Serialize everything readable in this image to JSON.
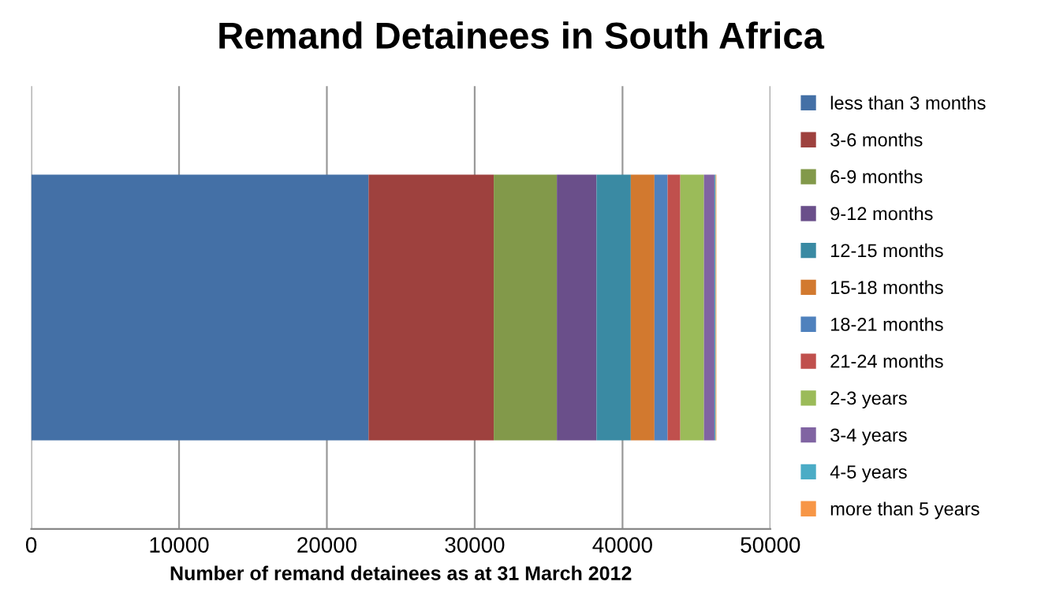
{
  "chart_data": {
    "type": "bar",
    "orientation": "horizontal",
    "stacked": true,
    "title": "Remand Detainees in South Africa",
    "xlabel": "Number of remand detainees as at 31 March 2012",
    "categories": [
      null
    ],
    "series": [
      {
        "name": "less than 3 months",
        "color": "#4470a6",
        "values": [
          22820
        ]
      },
      {
        "name": "3-6 months",
        "color": "#9e413e",
        "values": [
          8470
        ]
      },
      {
        "name": "6-9 months",
        "color": "#82994a",
        "values": [
          4270
        ]
      },
      {
        "name": "9-12 months",
        "color": "#6a4f8a",
        "values": [
          2680
        ]
      },
      {
        "name": "12-15 months",
        "color": "#3a8aa3",
        "values": [
          2320
        ]
      },
      {
        "name": "15-18 months",
        "color": "#d2792f",
        "values": [
          1600
        ]
      },
      {
        "name": "18-21 months",
        "color": "#4f81bd",
        "values": [
          890
        ]
      },
      {
        "name": "21-24 months",
        "color": "#c0504d",
        "values": [
          860
        ]
      },
      {
        "name": "2-3 years",
        "color": "#9bbb59",
        "values": [
          1600
        ]
      },
      {
        "name": "3-4 years",
        "color": "#8064a2",
        "values": [
          710
        ]
      },
      {
        "name": "4-5 years",
        "color": "#4bacc6",
        "values": [
          80
        ]
      },
      {
        "name": "more than 5 years",
        "color": "#f79646",
        "values": [
          50
        ]
      }
    ],
    "xlim": [
      0,
      50000
    ],
    "xticks": [
      0,
      10000,
      20000,
      30000,
      40000,
      50000
    ],
    "grid": "x",
    "legend": "right"
  }
}
